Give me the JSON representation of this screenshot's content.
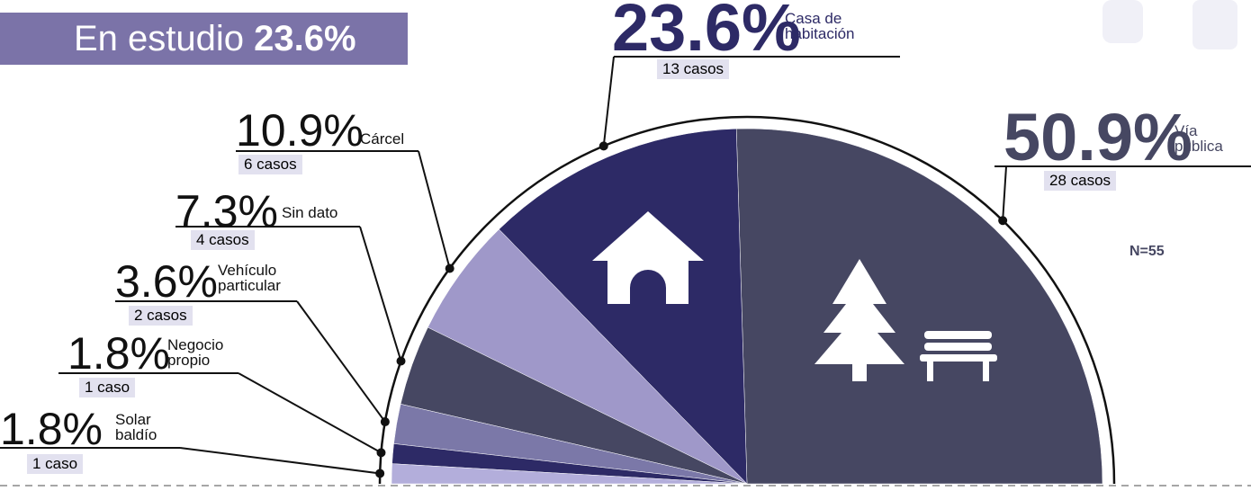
{
  "header": {
    "title": "En estudio",
    "value": "23.6%"
  },
  "chart_data": {
    "type": "pie",
    "layout": "semicircle",
    "categories": [
      "Vía pública",
      "Casa de habitación",
      "Cárcel",
      "Sin dato",
      "Vehículo particular",
      "Negocio propio",
      "Solar baldío"
    ],
    "values": [
      50.9,
      23.6,
      10.9,
      7.3,
      3.6,
      1.8,
      1.8
    ],
    "value_labels": [
      "50.9%",
      "23.6%",
      "10.9%",
      "7.3%",
      "3.6%",
      "1.8%",
      "1.8%"
    ],
    "case_labels": [
      "28 casos",
      "13 casos",
      "6 casos",
      "4 casos",
      "2 casos",
      "1 caso",
      "1 caso"
    ],
    "colors": [
      "#464762",
      "#2d2a66",
      "#9f98c9",
      "#464762",
      "#7b78a8",
      "#2d2a66",
      "#b3aedb"
    ],
    "note": "N=55"
  }
}
